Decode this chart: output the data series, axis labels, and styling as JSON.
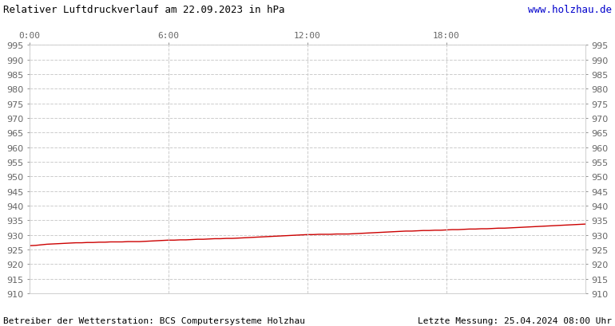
{
  "title_left": "Relativer Luftdruckverlauf am 22.09.2023 in hPa",
  "title_right": "www.holzhau.de",
  "title_right_color": "#0000cc",
  "footer_left": "Betreiber der Wetterstation: BCS Computersysteme Holzhau",
  "footer_right": "Letzte Messung: 25.04.2024 08:00 Uhr",
  "ylim": [
    910,
    995
  ],
  "ytick_step": 5,
  "xtick_labels": [
    "0:00",
    "6:00",
    "12:00",
    "18:00"
  ],
  "xtick_positions": [
    0,
    6,
    12,
    18
  ],
  "xlim": [
    0,
    24
  ],
  "line_color": "#cc0000",
  "background_color": "#ffffff",
  "plot_bg_color": "#ffffff",
  "grid_color": "#cccccc",
  "text_color": "#666666",
  "font_size_title": 9,
  "font_size_tick": 8,
  "font_size_footer": 8,
  "pressure_data_x": [
    0.0,
    0.25,
    0.5,
    0.75,
    1.0,
    1.25,
    1.5,
    1.75,
    2.0,
    2.25,
    2.5,
    2.75,
    3.0,
    3.25,
    3.5,
    3.75,
    4.0,
    4.25,
    4.5,
    4.75,
    5.0,
    5.25,
    5.5,
    5.75,
    6.0,
    6.25,
    6.5,
    6.75,
    7.0,
    7.25,
    7.5,
    7.75,
    8.0,
    8.25,
    8.5,
    8.75,
    9.0,
    9.25,
    9.5,
    9.75,
    10.0,
    10.25,
    10.5,
    10.75,
    11.0,
    11.25,
    11.5,
    11.75,
    12.0,
    12.25,
    12.5,
    12.75,
    13.0,
    13.25,
    13.5,
    13.75,
    14.0,
    14.25,
    14.5,
    14.75,
    15.0,
    15.25,
    15.5,
    15.75,
    16.0,
    16.25,
    16.5,
    16.75,
    17.0,
    17.25,
    17.5,
    17.75,
    18.0,
    18.25,
    18.5,
    18.75,
    19.0,
    19.25,
    19.5,
    19.75,
    20.0,
    20.25,
    20.5,
    20.75,
    21.0,
    21.25,
    21.5,
    21.75,
    22.0,
    22.25,
    22.5,
    22.75,
    23.0,
    23.25,
    23.5,
    23.75,
    24.0
  ],
  "pressure_data_y": [
    926.3,
    926.4,
    926.6,
    926.8,
    926.9,
    927.0,
    927.1,
    927.2,
    927.3,
    927.3,
    927.4,
    927.4,
    927.5,
    927.5,
    927.6,
    927.6,
    927.6,
    927.7,
    927.7,
    927.7,
    927.8,
    927.9,
    928.0,
    928.1,
    928.2,
    928.2,
    928.3,
    928.3,
    928.4,
    928.5,
    928.5,
    928.6,
    928.7,
    928.7,
    928.8,
    928.8,
    928.9,
    929.0,
    929.1,
    929.2,
    929.3,
    929.4,
    929.5,
    929.6,
    929.7,
    929.8,
    929.9,
    930.0,
    930.1,
    930.1,
    930.2,
    930.2,
    930.2,
    930.3,
    930.3,
    930.3,
    930.4,
    930.5,
    930.6,
    930.7,
    930.8,
    930.9,
    931.0,
    931.1,
    931.2,
    931.3,
    931.3,
    931.4,
    931.5,
    931.5,
    931.6,
    931.6,
    931.7,
    931.8,
    931.8,
    931.9,
    932.0,
    932.0,
    932.1,
    932.1,
    932.2,
    932.3,
    932.3,
    932.4,
    932.5,
    932.6,
    932.7,
    932.8,
    932.9,
    933.0,
    933.1,
    933.2,
    933.3,
    933.4,
    933.5,
    933.6,
    933.7
  ]
}
